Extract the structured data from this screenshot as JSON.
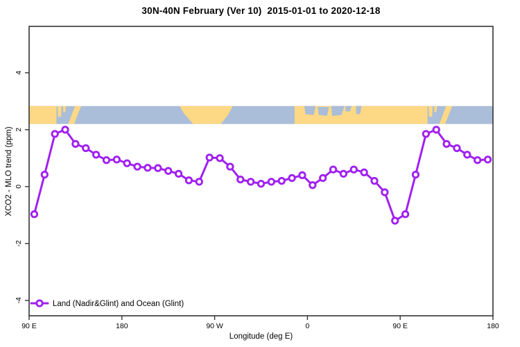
{
  "header": {
    "title": "30N-40N February (Ver 10)  2015-01-01 to 2020-12-18"
  },
  "legend": {
    "label": "Land (Nadir&Glint) and Ocean (Glint)",
    "marker": "open-circle",
    "color": "#A020F0"
  },
  "chart_data": {
    "type": "line",
    "title": "30N-40N February (Ver 10)  2015-01-01 to 2020-12-18",
    "xlabel": "Longitude (deg E)",
    "ylabel": "XCO2 - MLO trend (ppm)",
    "legend_position": "bottom-left-inside",
    "grid": false,
    "line_color": "#A020F0",
    "marker": "open-circle",
    "marker_fill": "#ffffff",
    "xlim": [
      90,
      540
    ],
    "ylim": [
      -4.54,
      5.63
    ],
    "x_ticks": [
      {
        "value": 90,
        "label": "90 E"
      },
      {
        "value": 180,
        "label": "180"
      },
      {
        "value": 270,
        "label": "90 W"
      },
      {
        "value": 360,
        "label": "0"
      },
      {
        "value": 450,
        "label": "90 E"
      },
      {
        "value": 540,
        "label": "180"
      }
    ],
    "y_ticks": [
      {
        "value": -4,
        "label": "-4"
      },
      {
        "value": -2,
        "label": "-2"
      },
      {
        "value": 0,
        "label": "0"
      },
      {
        "value": 2,
        "label": "2"
      },
      {
        "value": 4,
        "label": "4"
      }
    ],
    "series": [
      {
        "name": "Land (Nadir&Glint) and Ocean (Glint)",
        "x": [
          95,
          105,
          115,
          125,
          135,
          145,
          155,
          165,
          175,
          185,
          195,
          205,
          215,
          225,
          235,
          245,
          255,
          265,
          275,
          285,
          295,
          305,
          315,
          325,
          335,
          345,
          355,
          365,
          375,
          385,
          395,
          405,
          415,
          425,
          435,
          445,
          455,
          465,
          475,
          485,
          495,
          505,
          515,
          525,
          535
        ],
        "y": [
          -0.97,
          0.42,
          1.85,
          2.0,
          1.5,
          1.35,
          1.12,
          0.93,
          0.95,
          0.82,
          0.7,
          0.66,
          0.65,
          0.55,
          0.45,
          0.22,
          0.17,
          1.02,
          1.0,
          0.7,
          0.25,
          0.17,
          0.1,
          0.17,
          0.2,
          0.3,
          0.4,
          0.05,
          0.3,
          0.6,
          0.45,
          0.6,
          0.5,
          0.2,
          -0.2,
          -1.2,
          -0.97,
          0.42,
          1.85,
          2.0,
          1.5,
          1.35,
          1.12,
          0.93,
          0.95
        ]
      }
    ],
    "map_band": {
      "description": "30N-40N latitude world-map strip",
      "y_from": 2.2,
      "y_to": 2.83,
      "ocean_color": "#AABDD9",
      "land_color": "#FDD885",
      "land_shapes": [
        [
          [
            90,
            0
          ],
          [
            116.5,
            0
          ],
          [
            116.5,
            1
          ],
          [
            90,
            1
          ]
        ],
        [
          [
            117.5,
            0
          ],
          [
            121.5,
            0
          ],
          [
            121,
            0.6
          ],
          [
            118,
            0.6
          ]
        ],
        [
          [
            123,
            0
          ],
          [
            126,
            0
          ],
          [
            125,
            0.35
          ],
          [
            123,
            0.35
          ]
        ],
        [
          [
            128,
            1
          ],
          [
            134.5,
            0
          ],
          [
            140.5,
            0
          ],
          [
            133.5,
            1
          ]
        ],
        [
          [
            236,
            0
          ],
          [
            287.5,
            0
          ],
          [
            283,
            0.5
          ],
          [
            276,
            1
          ],
          [
            249,
            1
          ],
          [
            240,
            0.4
          ]
        ],
        [
          [
            347.5,
            0
          ],
          [
            476.5,
            0
          ],
          [
            476.5,
            1
          ],
          [
            347.5,
            1
          ]
        ],
        [
          [
            477.5,
            0
          ],
          [
            481.5,
            0
          ],
          [
            481,
            0.6
          ],
          [
            478,
            0.6
          ]
        ],
        [
          [
            483,
            0
          ],
          [
            486,
            0
          ],
          [
            485,
            0.35
          ],
          [
            483,
            0.35
          ]
        ],
        [
          [
            488,
            1
          ],
          [
            494.5,
            0
          ],
          [
            500.5,
            0
          ],
          [
            493.5,
            1
          ]
        ]
      ],
      "ocean_patches": [
        [
          [
            357,
            0
          ],
          [
            368,
            0
          ],
          [
            366,
            0.5
          ],
          [
            358,
            0.45
          ]
        ],
        [
          [
            370,
            0.05
          ],
          [
            381,
            0.05
          ],
          [
            379,
            0.55
          ],
          [
            371,
            0.5
          ]
        ],
        [
          [
            383,
            0
          ],
          [
            396,
            0
          ],
          [
            393,
            0.5
          ],
          [
            384,
            0.55
          ]
        ],
        [
          [
            397,
            0
          ],
          [
            403,
            0
          ],
          [
            401,
            0.3
          ],
          [
            397,
            0.3
          ]
        ],
        [
          [
            407,
            0
          ],
          [
            412.5,
            0
          ],
          [
            411,
            0.45
          ],
          [
            407.5,
            0.45
          ]
        ]
      ]
    }
  }
}
